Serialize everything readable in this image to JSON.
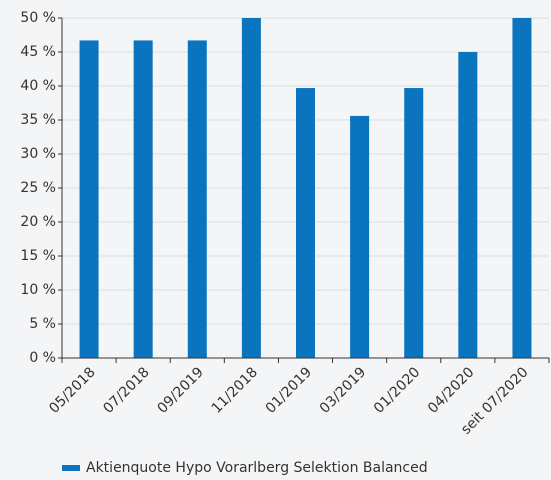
{
  "chart_data": {
    "type": "bar",
    "categories": [
      "05/2018",
      "07/2018",
      "09/2019",
      "11/2018",
      "01/2019",
      "03/2019",
      "01/2020",
      "04/2020",
      "seit 07/2020"
    ],
    "series": [
      {
        "name": "Aktienquote Hypo Vorarlberg Selektion Balanced",
        "color": "#0a74bf",
        "values": [
          46.7,
          46.7,
          46.7,
          50,
          39.7,
          35.6,
          39.7,
          45,
          50
        ]
      }
    ],
    "ylim": [
      0,
      50
    ],
    "yticks": [
      {
        "value": 0,
        "label": "0 %"
      },
      {
        "value": 5,
        "label": "5 %"
      },
      {
        "value": 10,
        "label": "10 %"
      },
      {
        "value": 15,
        "label": "15 %"
      },
      {
        "value": 20,
        "label": "20 %"
      },
      {
        "value": 25,
        "label": "25 %"
      },
      {
        "value": 30,
        "label": "30 %"
      },
      {
        "value": 35,
        "label": "35 %"
      },
      {
        "value": 40,
        "label": "40 %"
      },
      {
        "value": 45,
        "label": "45 %"
      },
      {
        "value": 50,
        "label": "50 %"
      }
    ],
    "grid": true,
    "legend": "bottom"
  }
}
